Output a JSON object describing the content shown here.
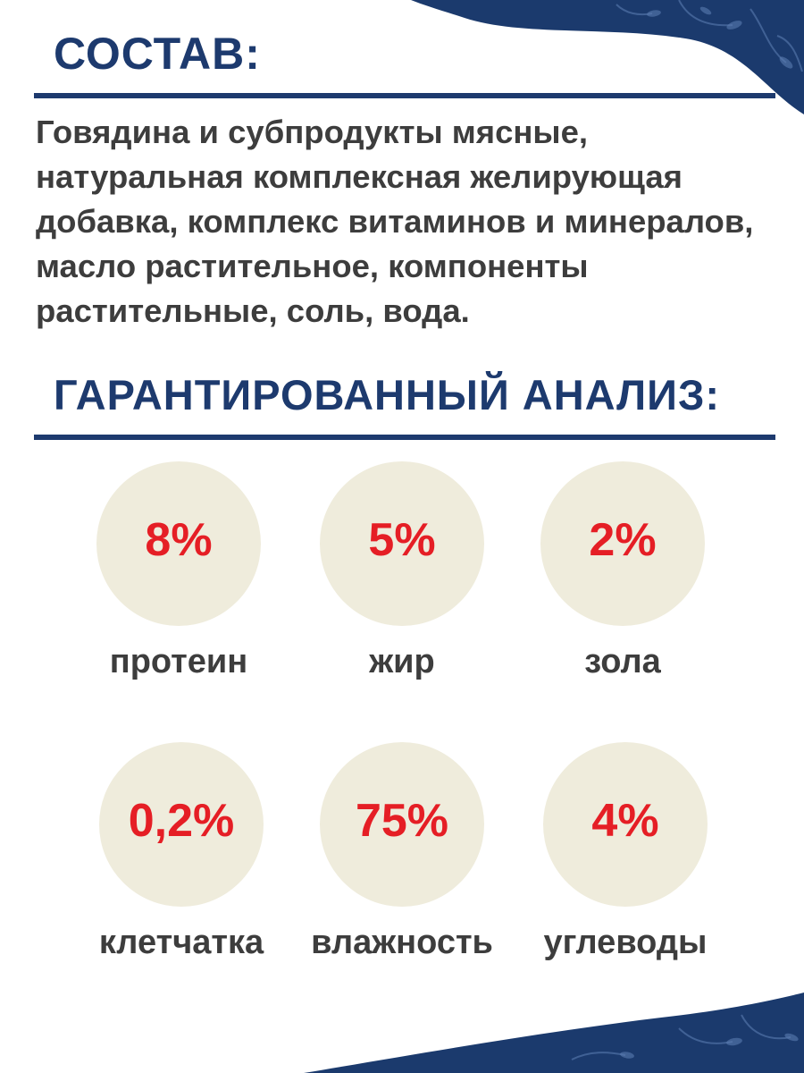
{
  "composition": {
    "heading": "СОСТАВ:",
    "text": "Говядина и субпродукты мясные, натуральная комплексная желирующая добавка, комплекс витаминов и минералов, масло растительное, компоненты растительные, соль, вода."
  },
  "analysis": {
    "heading": "ГАРАНТИРОВАННЫЙ АНАЛИЗ:",
    "items": [
      {
        "value": "8%",
        "label": "протеин"
      },
      {
        "value": "5%",
        "label": "жир"
      },
      {
        "value": "2%",
        "label": "зола"
      },
      {
        "value": "0,2%",
        "label": "клетчатка"
      },
      {
        "value": "75%",
        "label": "влажность"
      },
      {
        "value": "4%",
        "label": "углеводы"
      }
    ]
  },
  "colors": {
    "accent_navy": "#1d3a6e",
    "value_red": "#e51e25",
    "circle_beige": "#efecdc",
    "text_gray": "#3d3d3d"
  }
}
